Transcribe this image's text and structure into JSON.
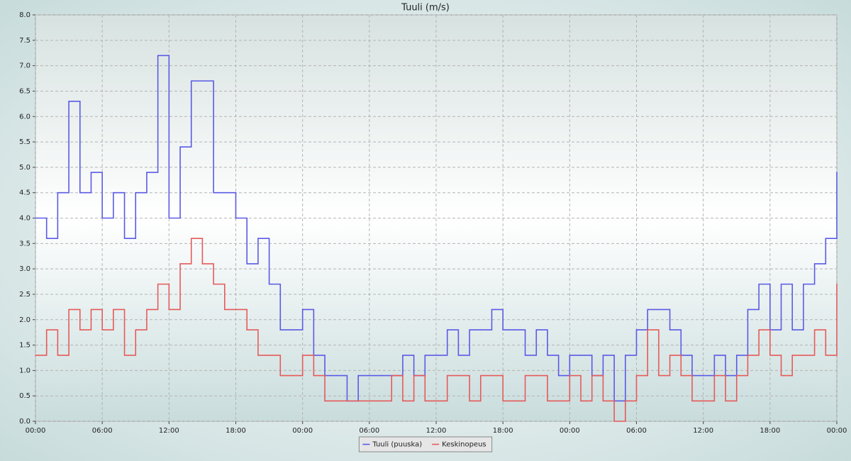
{
  "chart_data": {
    "type": "line",
    "step": true,
    "title": "Tuuli (m/s)",
    "x": [
      0,
      1,
      2,
      3,
      4,
      5,
      6,
      7,
      8,
      9,
      10,
      11,
      12,
      13,
      14,
      15,
      16,
      17,
      18,
      19,
      20,
      21,
      22,
      23,
      24,
      25,
      26,
      27,
      28,
      29,
      30,
      31,
      32,
      33,
      34,
      35,
      36,
      37,
      38,
      39,
      40,
      41,
      42,
      43,
      44,
      45,
      46,
      47,
      48,
      49,
      50,
      51,
      52,
      53,
      54,
      55,
      56,
      57,
      58,
      59,
      60,
      61,
      62,
      63,
      64,
      65,
      66,
      67,
      68,
      69,
      70,
      71,
      72
    ],
    "series": [
      {
        "name": "Tuuli (puuska)",
        "color": "#5a5ae6",
        "values": [
          4.0,
          3.6,
          4.5,
          6.3,
          4.5,
          4.9,
          4.0,
          4.5,
          3.6,
          4.5,
          4.9,
          7.2,
          4.0,
          5.4,
          6.7,
          6.7,
          4.5,
          4.5,
          4.0,
          3.1,
          3.6,
          2.7,
          1.8,
          1.8,
          2.2,
          1.3,
          0.9,
          0.9,
          0.4,
          0.9,
          0.9,
          0.9,
          0.9,
          1.3,
          0.9,
          1.3,
          1.3,
          1.8,
          1.3,
          1.8,
          1.8,
          2.2,
          1.8,
          1.8,
          1.3,
          1.8,
          1.3,
          0.9,
          1.3,
          1.3,
          0.9,
          1.3,
          0.4,
          1.3,
          1.8,
          2.2,
          2.2,
          1.8,
          1.3,
          0.9,
          0.9,
          1.3,
          0.9,
          1.3,
          2.2,
          2.7,
          1.8,
          2.7,
          1.8,
          2.7,
          3.1,
          3.6,
          4.9
        ]
      },
      {
        "name": "Keskinopeus",
        "color": "#e65a5a",
        "values": [
          1.3,
          1.8,
          1.3,
          2.2,
          1.8,
          2.2,
          1.8,
          2.2,
          1.3,
          1.8,
          2.2,
          2.7,
          2.2,
          3.1,
          3.6,
          3.1,
          2.7,
          2.2,
          2.2,
          1.8,
          1.3,
          1.3,
          0.9,
          0.9,
          1.3,
          0.9,
          0.4,
          0.4,
          0.4,
          0.4,
          0.4,
          0.4,
          0.9,
          0.4,
          0.9,
          0.4,
          0.4,
          0.9,
          0.9,
          0.4,
          0.9,
          0.9,
          0.4,
          0.4,
          0.9,
          0.9,
          0.4,
          0.4,
          0.9,
          0.4,
          0.9,
          0.4,
          0.0,
          0.4,
          0.9,
          1.8,
          0.9,
          1.3,
          0.9,
          0.4,
          0.4,
          0.9,
          0.4,
          0.9,
          1.3,
          1.8,
          1.3,
          0.9,
          1.3,
          1.3,
          1.8,
          1.3,
          2.7
        ]
      }
    ],
    "xlim": [
      0,
      72
    ],
    "xticks": [
      {
        "value": 0,
        "label": "00:00"
      },
      {
        "value": 6,
        "label": "06:00"
      },
      {
        "value": 12,
        "label": "12:00"
      },
      {
        "value": 18,
        "label": "18:00"
      },
      {
        "value": 24,
        "label": "00:00"
      },
      {
        "value": 30,
        "label": "06:00"
      },
      {
        "value": 36,
        "label": "12:00"
      },
      {
        "value": 42,
        "label": "18:00"
      },
      {
        "value": 48,
        "label": "00:00"
      },
      {
        "value": 54,
        "label": "06:00"
      },
      {
        "value": 60,
        "label": "12:00"
      },
      {
        "value": 66,
        "label": "18:00"
      },
      {
        "value": 72,
        "label": "00:00"
      }
    ],
    "ylim": [
      0,
      8
    ],
    "yticks": [
      {
        "value": 0,
        "label": "0.0"
      },
      0.5,
      {
        "value": 1,
        "label": "1.0"
      },
      1.5,
      {
        "value": 2,
        "label": "2.0"
      },
      2.5,
      {
        "value": 3,
        "label": "3.0"
      },
      3.5,
      {
        "value": 4,
        "label": "4.0"
      },
      4.5,
      {
        "value": 5,
        "label": "5.0"
      },
      5.5,
      {
        "value": 6,
        "label": "6.0"
      },
      6.5,
      {
        "value": 7,
        "label": "7.0"
      },
      7.5,
      {
        "value": 8,
        "label": "8.0"
      }
    ],
    "grid": true,
    "legend": "bottom"
  }
}
